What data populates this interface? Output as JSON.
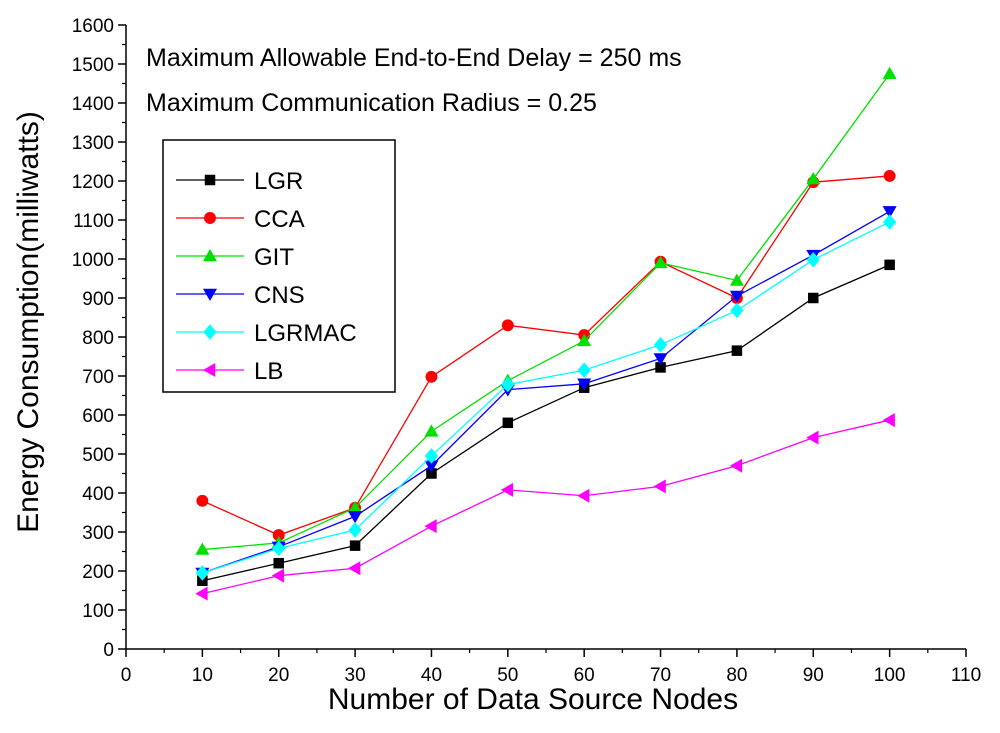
{
  "chart_data": {
    "type": "line",
    "xlabel": "Number of Data Source Nodes",
    "ylabel": "Energy Consumption(milliwatts)",
    "xlim": [
      0,
      110
    ],
    "ylim": [
      0,
      1600
    ],
    "xticks": [
      0,
      10,
      20,
      30,
      40,
      50,
      60,
      70,
      80,
      90,
      100,
      110
    ],
    "yticks": [
      0,
      100,
      200,
      300,
      400,
      500,
      600,
      700,
      800,
      900,
      1000,
      1100,
      1200,
      1300,
      1400,
      1500,
      1600
    ],
    "grid": false,
    "legend_position": "top-left",
    "annotations": [
      "Maximum Allowable End-to-End Delay = 250 ms",
      "Maximum Communication Radius = 0.25"
    ],
    "x": [
      10,
      20,
      30,
      40,
      50,
      60,
      70,
      80,
      90,
      100
    ],
    "series": [
      {
        "name": "LGR",
        "color": "#000000",
        "marker": "square",
        "values": [
          175,
          220,
          265,
          450,
          580,
          670,
          722,
          765,
          900,
          985
        ]
      },
      {
        "name": "CCA",
        "color": "#ff0000",
        "marker": "circle",
        "values": [
          380,
          292,
          362,
          698,
          830,
          805,
          993,
          900,
          1197,
          1213
        ]
      },
      {
        "name": "GIT",
        "color": "#00e000",
        "marker": "triangle-up",
        "values": [
          255,
          272,
          362,
          558,
          688,
          790,
          990,
          945,
          1205,
          1475
        ]
      },
      {
        "name": "CNS",
        "color": "#0000ff",
        "marker": "triangle-down",
        "values": [
          195,
          262,
          340,
          470,
          665,
          680,
          745,
          905,
          1010,
          1122
        ]
      },
      {
        "name": "LGRMAC",
        "color": "#00ffff",
        "marker": "diamond",
        "values": [
          195,
          258,
          305,
          495,
          678,
          715,
          780,
          868,
          998,
          1095
        ]
      },
      {
        "name": "LB",
        "color": "#ff00ff",
        "marker": "triangle-left",
        "values": [
          142,
          188,
          207,
          315,
          408,
          393,
          417,
          470,
          542,
          587
        ]
      }
    ]
  }
}
